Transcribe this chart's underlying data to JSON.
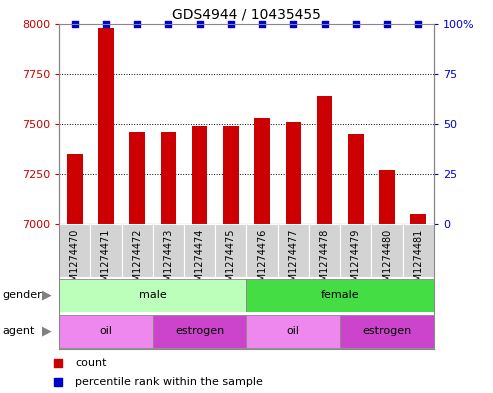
{
  "title": "GDS4944 / 10435455",
  "samples": [
    "GSM1274470",
    "GSM1274471",
    "GSM1274472",
    "GSM1274473",
    "GSM1274474",
    "GSM1274475",
    "GSM1274476",
    "GSM1274477",
    "GSM1274478",
    "GSM1274479",
    "GSM1274480",
    "GSM1274481"
  ],
  "bar_values": [
    7350,
    7980,
    7460,
    7460,
    7490,
    7490,
    7530,
    7510,
    7640,
    7450,
    7270,
    7050
  ],
  "percentile_values": [
    100,
    100,
    100,
    100,
    100,
    100,
    100,
    100,
    100,
    100,
    100,
    100
  ],
  "bar_color": "#cc0000",
  "percentile_color": "#0000cc",
  "ylim_left": [
    7000,
    8000
  ],
  "ylim_right": [
    0,
    100
  ],
  "yticks_left": [
    7000,
    7250,
    7500,
    7750,
    8000
  ],
  "yticks_right": [
    0,
    25,
    50,
    75,
    100
  ],
  "gender_groups": [
    {
      "label": "male",
      "start": 0,
      "end": 6,
      "color": "#bbffbb"
    },
    {
      "label": "female",
      "start": 6,
      "end": 12,
      "color": "#44dd44"
    }
  ],
  "agent_groups": [
    {
      "label": "oil",
      "start": 0,
      "end": 3,
      "color": "#ee88ee"
    },
    {
      "label": "estrogen",
      "start": 3,
      "end": 6,
      "color": "#cc44cc"
    },
    {
      "label": "oil",
      "start": 6,
      "end": 9,
      "color": "#ee88ee"
    },
    {
      "label": "estrogen",
      "start": 9,
      "end": 12,
      "color": "#cc44cc"
    }
  ],
  "background_color": "#ffffff",
  "bar_width": 0.5,
  "title_fontsize": 10,
  "tick_fontsize": 8,
  "label_fontsize": 8,
  "sample_fontsize": 7
}
